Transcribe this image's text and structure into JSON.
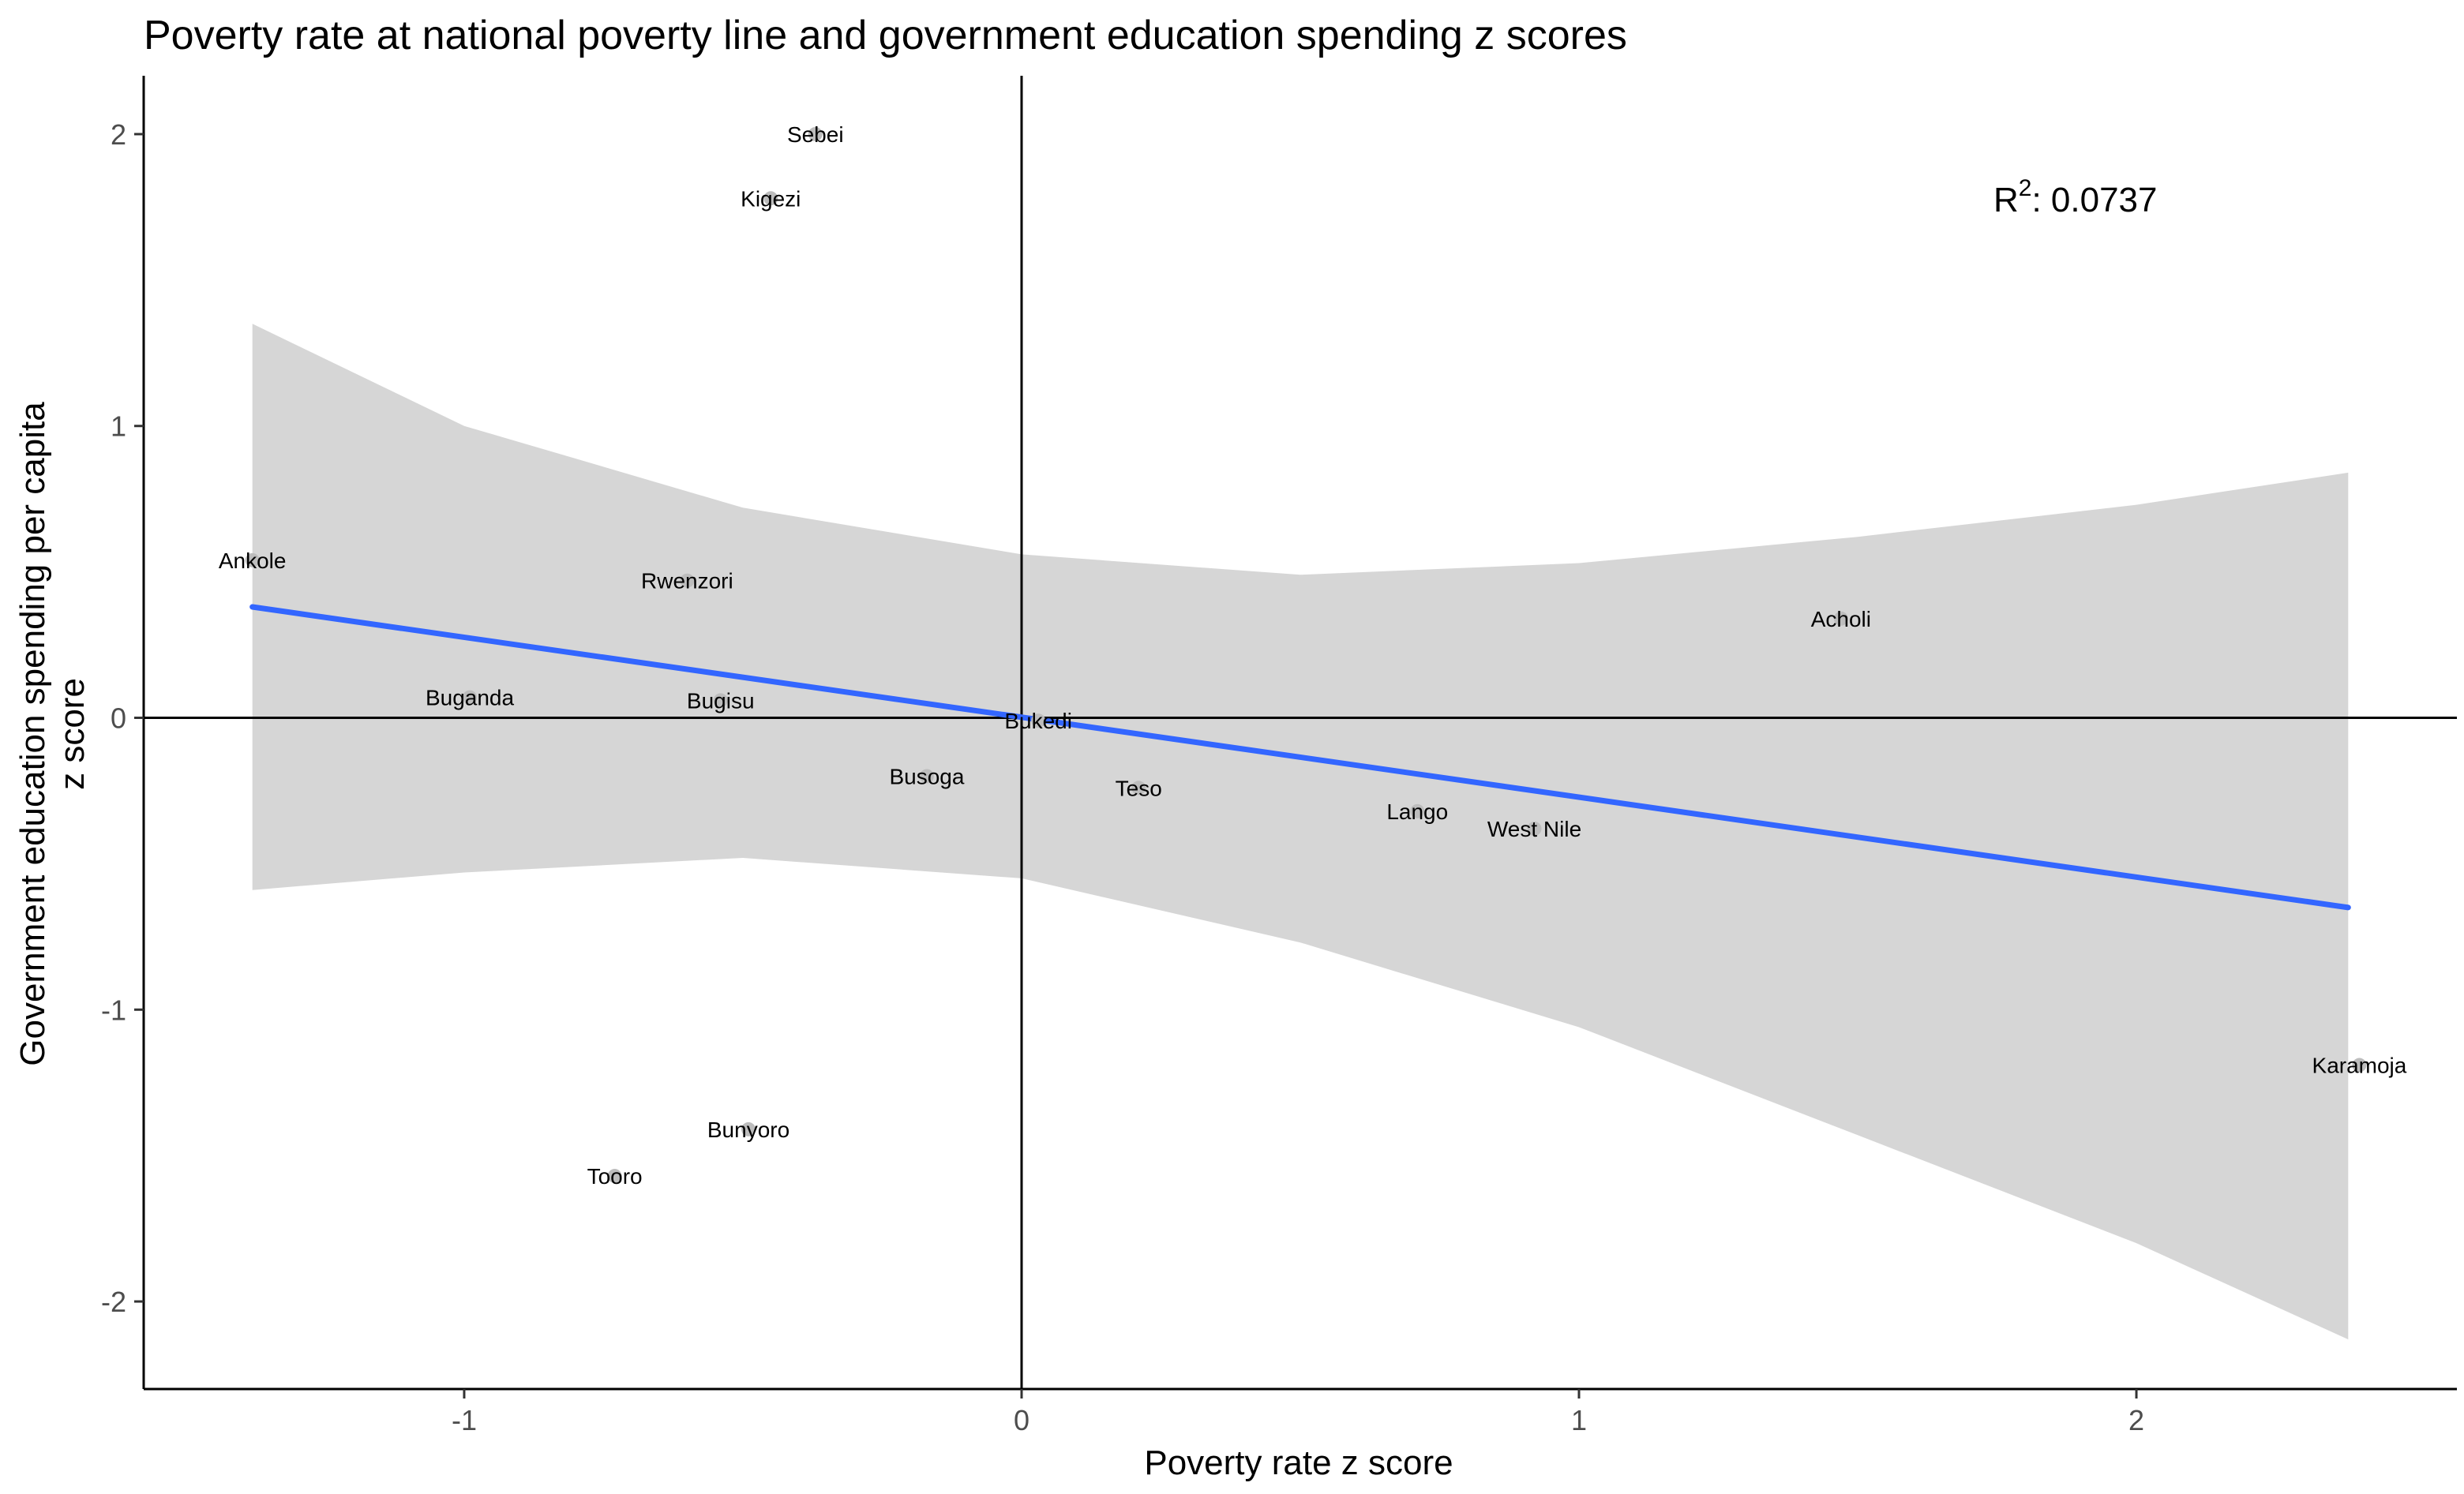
{
  "chart_data": {
    "type": "scatter",
    "title": "Poverty rate at national poverty line and government education spending z scores",
    "xlabel": "Poverty rate z score",
    "ylabel_line1": "Government education spending per capita",
    "ylabel_line2": "z score",
    "xlim": [
      -1.575,
      2.575
    ],
    "ylim": [
      -2.3,
      2.2
    ],
    "x_ticks": [
      -1,
      0,
      1,
      2
    ],
    "y_ticks": [
      -2,
      -1,
      0,
      1,
      2
    ],
    "grid": false,
    "reference_lines": {
      "x": 0,
      "y": 0
    },
    "annotation": {
      "r2_label": "R",
      "r2_sup": "2",
      "r2_text": ": 0.0737"
    },
    "points": [
      {
        "label": "Sebei",
        "x": -0.37,
        "y": 2.0
      },
      {
        "label": "Kigezi",
        "x": -0.45,
        "y": 1.78
      },
      {
        "label": "Ankole",
        "x": -1.38,
        "y": 0.54
      },
      {
        "label": "Rwenzori",
        "x": -0.6,
        "y": 0.47
      },
      {
        "label": "Acholi",
        "x": 1.47,
        "y": 0.34
      },
      {
        "label": "Buganda",
        "x": -0.99,
        "y": 0.07
      },
      {
        "label": "Bugisu",
        "x": -0.54,
        "y": 0.06
      },
      {
        "label": "Bukedi",
        "x": 0.03,
        "y": -0.01
      },
      {
        "label": "Busoga",
        "x": -0.17,
        "y": -0.2
      },
      {
        "label": "Teso",
        "x": 0.21,
        "y": -0.24
      },
      {
        "label": "Lango",
        "x": 0.71,
        "y": -0.32
      },
      {
        "label": "West Nile",
        "x": 0.92,
        "y": -0.38
      },
      {
        "label": "Karamoja",
        "x": 2.4,
        "y": -1.19
      },
      {
        "label": "Bunyoro",
        "x": -0.49,
        "y": -1.41
      },
      {
        "label": "Tooro",
        "x": -0.73,
        "y": -1.57
      }
    ],
    "fit_line": {
      "x": [
        -1.38,
        2.38
      ],
      "y": [
        0.38,
        -0.65
      ],
      "color": "#3366FF"
    },
    "confidence_band": {
      "color": "#D6D6D6",
      "upper": [
        [
          -1.38,
          1.35
        ],
        [
          -1.0,
          1.0
        ],
        [
          -0.5,
          0.72
        ],
        [
          0.0,
          0.56
        ],
        [
          0.5,
          0.49
        ],
        [
          1.0,
          0.53
        ],
        [
          1.5,
          0.62
        ],
        [
          2.0,
          0.73
        ],
        [
          2.38,
          0.84
        ]
      ],
      "lower": [
        [
          -1.38,
          -0.59
        ],
        [
          -1.0,
          -0.53
        ],
        [
          -0.5,
          -0.48
        ],
        [
          0.0,
          -0.55
        ],
        [
          0.5,
          -0.77
        ],
        [
          1.0,
          -1.06
        ],
        [
          1.5,
          -1.43
        ],
        [
          2.0,
          -1.8
        ],
        [
          2.38,
          -2.13
        ]
      ]
    },
    "point_color": "#BDBDBD"
  }
}
